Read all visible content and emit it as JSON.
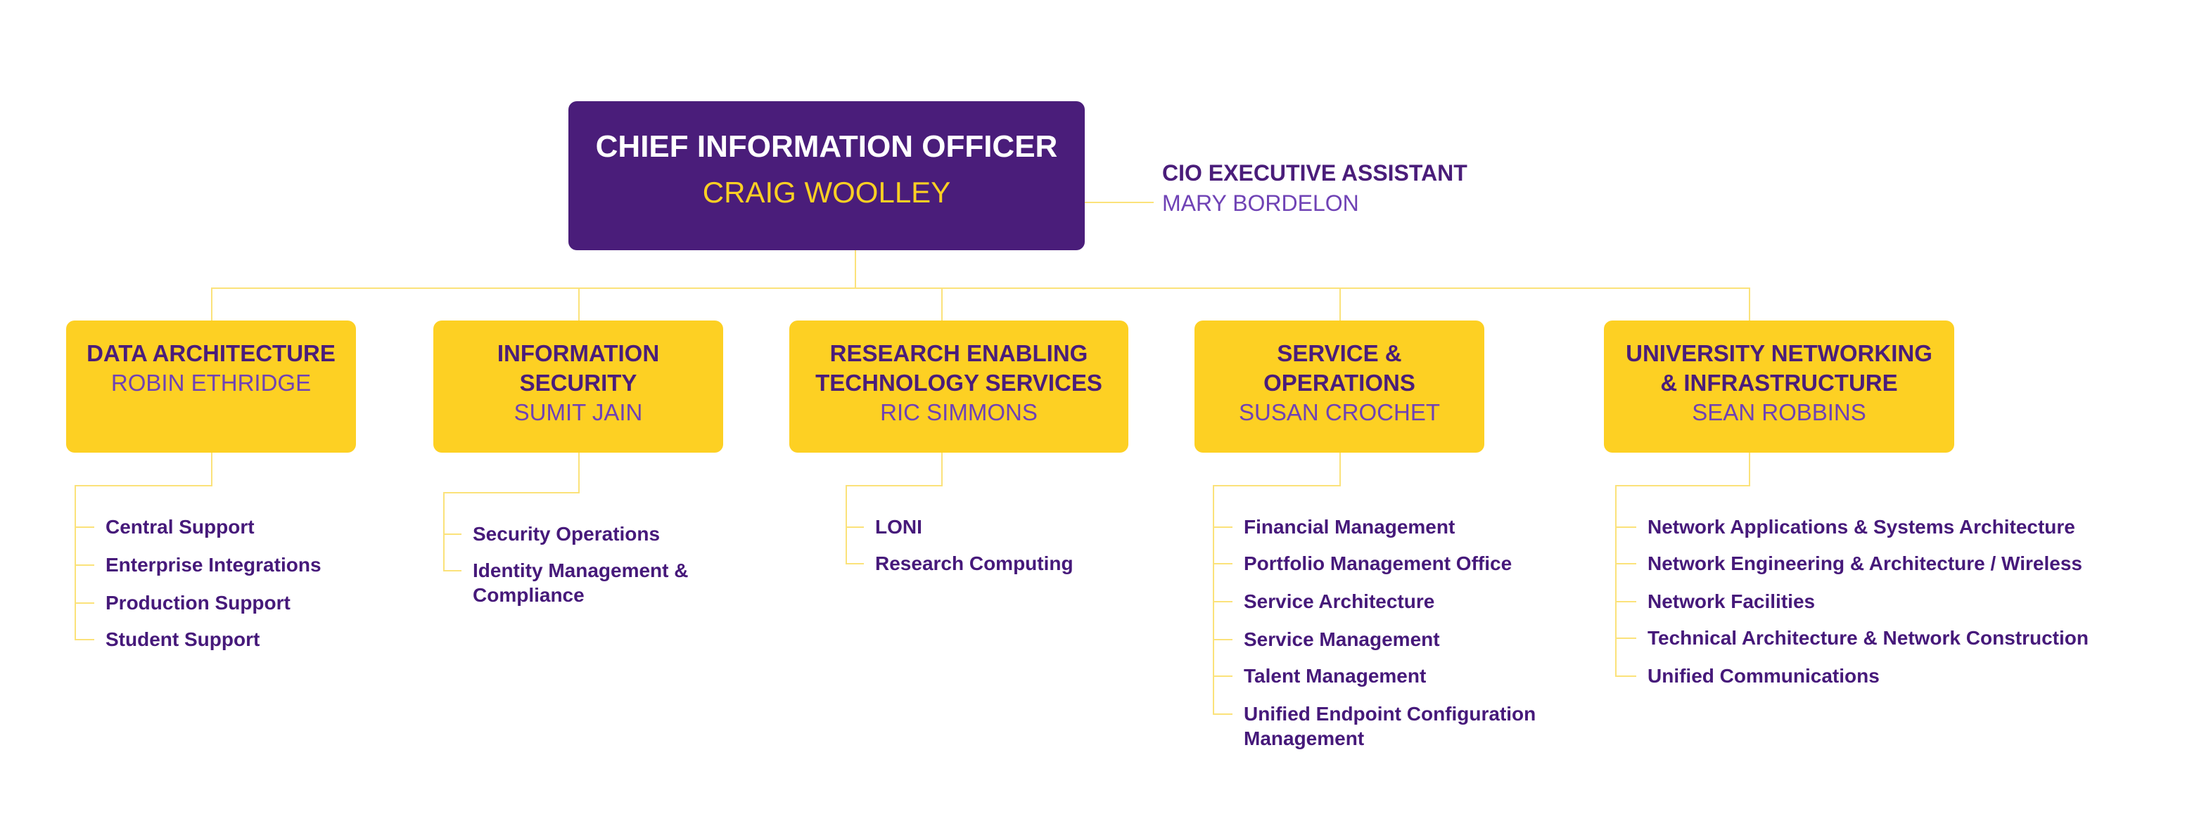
{
  "cio": {
    "title": "CHIEF INFORMATION OFFICER",
    "name": "CRAIG WOOLLEY"
  },
  "assistant": {
    "title": "CIO EXECUTIVE ASSISTANT",
    "name": "MARY BORDELON"
  },
  "colors": {
    "purple": "#4a1d7a",
    "gold": "#fdd023",
    "connector": "#fbe27a",
    "name_purple": "#6f42b5"
  },
  "departments": [
    {
      "title": "DATA ARCHITECTURE",
      "name": "ROBIN ETHRIDGE",
      "items": [
        "Central Support",
        "Enterprise Integrations",
        "Production Support",
        "Student Support"
      ]
    },
    {
      "title": "INFORMATION SECURITY",
      "name": "SUMIT JAIN",
      "items": [
        "Security Operations",
        "Identity Management & Compliance"
      ]
    },
    {
      "title": "RESEARCH ENABLING TECHNOLOGY SERVICES",
      "name": "RIC SIMMONS",
      "items": [
        "LONI",
        "Research Computing"
      ]
    },
    {
      "title": "SERVICE & OPERATIONS",
      "name": "SUSAN CROCHET",
      "items": [
        "Financial Management",
        "Portfolio Management Office",
        "Service Architecture",
        "Service Management",
        "Talent Management",
        "Unified Endpoint Configuration Management"
      ]
    },
    {
      "title": "UNIVERSITY NETWORKING & INFRASTRUCTURE",
      "name": "SEAN ROBBINS",
      "items": [
        "Network Applications & Systems Architecture",
        "Network Engineering & Architecture / Wireless",
        "Network Facilities",
        "Technical Architecture & Network Construction",
        "Unified Communications"
      ]
    }
  ]
}
